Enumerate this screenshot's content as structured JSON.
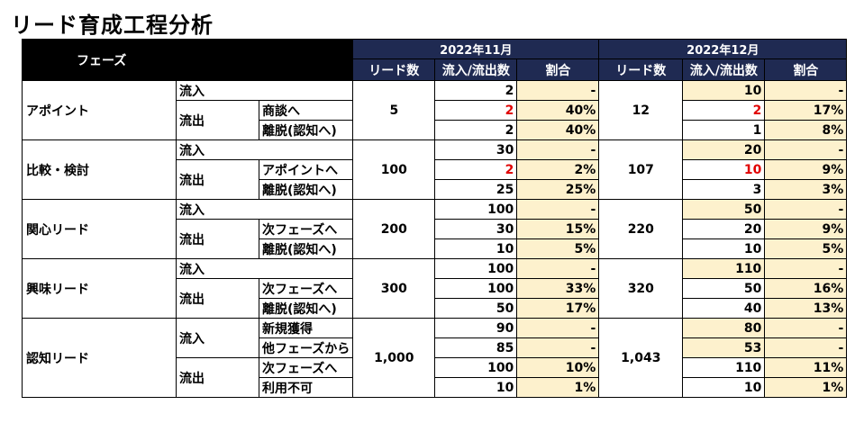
{
  "title": "リード育成工程分析",
  "header": {
    "phase": "フェーズ",
    "months": [
      "2022年11月",
      "2022年12月"
    ],
    "columns": [
      "リード数",
      "流入/流出数",
      "割合",
      "リード数",
      "流入/流出数",
      "割合"
    ]
  },
  "rows": {
    "appoint": {
      "phase": "アポイント",
      "lead_nov": "5",
      "lead_dec": "12",
      "in_label": "流入",
      "out_label": "流出",
      "r1": {
        "sub": "",
        "nov_num": "2",
        "nov_pct": "-",
        "dec_num": "10",
        "dec_pct": "-"
      },
      "r2": {
        "sub": "商談へ",
        "nov_num": "2",
        "nov_pct": "40%",
        "dec_num": "2",
        "dec_pct": "17%"
      },
      "r3": {
        "sub": "離脱(認知へ)",
        "nov_num": "2",
        "nov_pct": "40%",
        "dec_num": "1",
        "dec_pct": "8%"
      }
    },
    "compare": {
      "phase": "比較・検討",
      "lead_nov": "100",
      "lead_dec": "107",
      "in_label": "流入",
      "out_label": "流出",
      "r1": {
        "sub": "",
        "nov_num": "30",
        "nov_pct": "-",
        "dec_num": "20",
        "dec_pct": "-"
      },
      "r2": {
        "sub": "アポイントへ",
        "nov_num": "2",
        "nov_pct": "2%",
        "dec_num": "10",
        "dec_pct": "9%"
      },
      "r3": {
        "sub": "離脱(認知へ)",
        "nov_num": "25",
        "nov_pct": "25%",
        "dec_num": "3",
        "dec_pct": "3%"
      }
    },
    "interest": {
      "phase": "関心リード",
      "lead_nov": "200",
      "lead_dec": "220",
      "in_label": "流入",
      "out_label": "流出",
      "r1": {
        "sub": "",
        "nov_num": "100",
        "nov_pct": "-",
        "dec_num": "50",
        "dec_pct": "-"
      },
      "r2": {
        "sub": "次フェーズへ",
        "nov_num": "30",
        "nov_pct": "15%",
        "dec_num": "20",
        "dec_pct": "9%"
      },
      "r3": {
        "sub": "離脱(認知へ)",
        "nov_num": "10",
        "nov_pct": "5%",
        "dec_num": "10",
        "dec_pct": "5%"
      }
    },
    "curious": {
      "phase": "興味リード",
      "lead_nov": "300",
      "lead_dec": "320",
      "in_label": "流入",
      "out_label": "流出",
      "r1": {
        "sub": "",
        "nov_num": "100",
        "nov_pct": "-",
        "dec_num": "110",
        "dec_pct": "-"
      },
      "r2": {
        "sub": "次フェーズへ",
        "nov_num": "100",
        "nov_pct": "33%",
        "dec_num": "50",
        "dec_pct": "16%"
      },
      "r3": {
        "sub": "離脱(認知へ)",
        "nov_num": "50",
        "nov_pct": "17%",
        "dec_num": "40",
        "dec_pct": "13%"
      }
    },
    "aware": {
      "phase": "認知リード",
      "lead_nov": "1,000",
      "lead_dec": "1,043",
      "in_label": "流入",
      "out_label": "流出",
      "r1": {
        "sub": "新規獲得",
        "nov_num": "90",
        "nov_pct": "-",
        "dec_num": "80",
        "dec_pct": "-"
      },
      "r2": {
        "sub": "他フェーズから",
        "nov_num": "85",
        "nov_pct": "-",
        "dec_num": "53",
        "dec_pct": "-"
      },
      "r3": {
        "sub": "次フェーズへ",
        "nov_num": "100",
        "nov_pct": "10%",
        "dec_num": "110",
        "dec_pct": "11%"
      },
      "r4": {
        "sub": "利用不可",
        "nov_num": "10",
        "nov_pct": "1%",
        "dec_num": "10",
        "dec_pct": "1%"
      }
    }
  },
  "colors": {
    "header_navy": "#1f2a52",
    "highlight": "#fdf1cd",
    "red_value": "#e00000"
  }
}
